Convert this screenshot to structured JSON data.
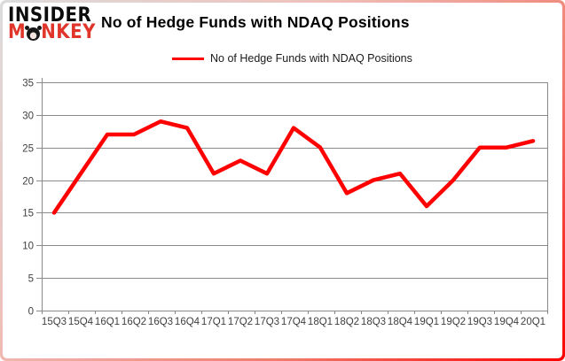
{
  "logo": {
    "line1": "INSIDER",
    "line2_parts": [
      "M",
      "NKEY"
    ]
  },
  "header": {
    "title": "No of Hedge Funds with NDAQ Positions"
  },
  "legend": {
    "label": "No of Hedge Funds with NDAQ Positions"
  },
  "colors": {
    "series_line": "#fe0000",
    "grid": "#8a8a8a",
    "tick_text": "#3f3f3f",
    "logo_red": "#e0352b",
    "frame_border_end": "#fb0000"
  },
  "chart_data": {
    "type": "line",
    "title": "No of Hedge Funds with NDAQ Positions",
    "categories": [
      "15Q3",
      "15Q4",
      "16Q1",
      "16Q2",
      "16Q3",
      "16Q4",
      "17Q1",
      "17Q2",
      "17Q3",
      "17Q4",
      "18Q1",
      "18Q2",
      "18Q3",
      "18Q4",
      "19Q1",
      "19Q2",
      "19Q3",
      "19Q4",
      "20Q1"
    ],
    "series": [
      {
        "name": "No of Hedge Funds with NDAQ Positions",
        "values": [
          15,
          21,
          27,
          27,
          29,
          28,
          21,
          23,
          21,
          28,
          25,
          18,
          20,
          21,
          16,
          20,
          25,
          25,
          26
        ]
      }
    ],
    "xlabel": "",
    "ylabel": "",
    "ylim": [
      0,
      35
    ],
    "ytick_interval": 5,
    "grid": true,
    "legend_position": "top-center"
  }
}
